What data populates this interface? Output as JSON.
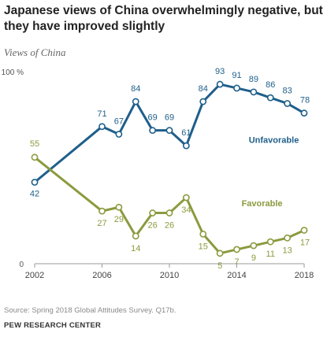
{
  "title": "Japanese views of China overwhelmingly negative, but they have improved slightly",
  "subtitle": "Views of China",
  "source": "Source: Spring 2018 Global Attitudes Survey. Q17b.",
  "brand": "PEW RESEARCH CENTER",
  "chart_data": {
    "type": "line",
    "x": [
      2002,
      2006,
      2007,
      2008,
      2009,
      2010,
      2011,
      2012,
      2013,
      2014,
      2015,
      2016,
      2017,
      2018
    ],
    "series": [
      {
        "name": "Unfavorable",
        "color": "#1f5f8b",
        "values": [
          42,
          71,
          67,
          84,
          69,
          69,
          61,
          84,
          93,
          91,
          89,
          86,
          83,
          78
        ]
      },
      {
        "name": "Favorable",
        "color": "#8c9a3e",
        "values": [
          55,
          27,
          29,
          14,
          26,
          26,
          34,
          15,
          5,
          7,
          9,
          11,
          13,
          17
        ]
      }
    ],
    "xticks": [
      "2002",
      "2006",
      "2010",
      "2014",
      "2018"
    ],
    "ytick_top": "100 %",
    "ytick_bottom": "0",
    "ylim": [
      0,
      100
    ],
    "xlim": [
      2002,
      2018
    ],
    "grid": false,
    "legend": "direct labels"
  }
}
